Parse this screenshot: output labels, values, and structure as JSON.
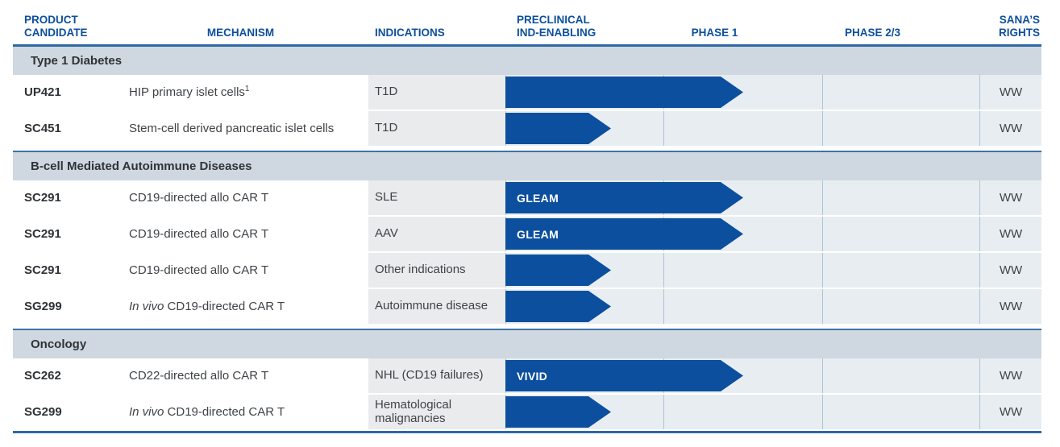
{
  "colors": {
    "accent_blue": "#0c4f9e",
    "header_text_blue": "#0c4f9e",
    "rule_blue": "#2e68a4",
    "section_bar_bg": "#cfd8e0",
    "phase_cell_bg": "#e8edf1",
    "indication_cell_bg": "#e9ebec",
    "column_separator": "#aec3d6",
    "arrow_label_text": "#ffffff"
  },
  "header": {
    "columns": [
      {
        "label": "PRODUCT\nCANDIDATE"
      },
      {
        "label": "MECHANISM"
      },
      {
        "label": "INDICATIONS"
      },
      {
        "label": "PRECLINICAL\nIND-ENABLING"
      },
      {
        "label": "PHASE 1"
      },
      {
        "label": "PHASE 2/3"
      },
      {
        "label": "SANA’S\nRIGHTS"
      }
    ]
  },
  "sections": [
    {
      "title": "Type 1 Diabetes",
      "rows": [
        {
          "candidate": "UP421",
          "mechanism": {
            "text": "HIP primary islet cells",
            "sup": "1"
          },
          "indication": "T1D",
          "arrow": {
            "label": "",
            "extent": "mid-phase1"
          },
          "rights": "WW"
        },
        {
          "candidate": "SC451",
          "mechanism": {
            "text": "Stem-cell derived pancreatic islet cells"
          },
          "indication": "T1D",
          "arrow": {
            "label": "",
            "extent": "preclinical"
          },
          "rights": "WW"
        }
      ]
    },
    {
      "title": "B-cell Mediated Autoimmune Diseases",
      "rows": [
        {
          "candidate": "SC291",
          "mechanism": {
            "text": "CD19-directed allo CAR T"
          },
          "indication": "SLE",
          "arrow": {
            "label": "GLEAM",
            "extent": "mid-phase1"
          },
          "rights": "WW"
        },
        {
          "candidate": "SC291",
          "mechanism": {
            "text": "CD19-directed allo CAR T"
          },
          "indication": "AAV",
          "arrow": {
            "label": "GLEAM",
            "extent": "mid-phase1"
          },
          "rights": "WW"
        },
        {
          "candidate": "SC291",
          "mechanism": {
            "text": "CD19-directed allo CAR T"
          },
          "indication": "Other indications",
          "arrow": {
            "label": "",
            "extent": "preclinical"
          },
          "rights": "WW"
        },
        {
          "candidate": "SG299",
          "mechanism": {
            "italic": "In vivo",
            "text": " CD19-directed CAR T"
          },
          "indication": "Autoimmune disease",
          "arrow": {
            "label": "",
            "extent": "preclinical"
          },
          "rights": "WW"
        }
      ]
    },
    {
      "title": "Oncology",
      "rows": [
        {
          "candidate": "SC262",
          "mechanism": {
            "text": "CD22-directed allo CAR T"
          },
          "indication": "NHL (CD19 failures)",
          "arrow": {
            "label": "VIVID",
            "extent": "mid-phase1"
          },
          "rights": "WW"
        },
        {
          "candidate": "SG299",
          "mechanism": {
            "italic": "In vivo",
            "text": " CD19-directed CAR T"
          },
          "indication": "Hematological malignancies",
          "arrow": {
            "label": "",
            "extent": "preclinical"
          },
          "rights": "WW"
        }
      ]
    }
  ]
}
